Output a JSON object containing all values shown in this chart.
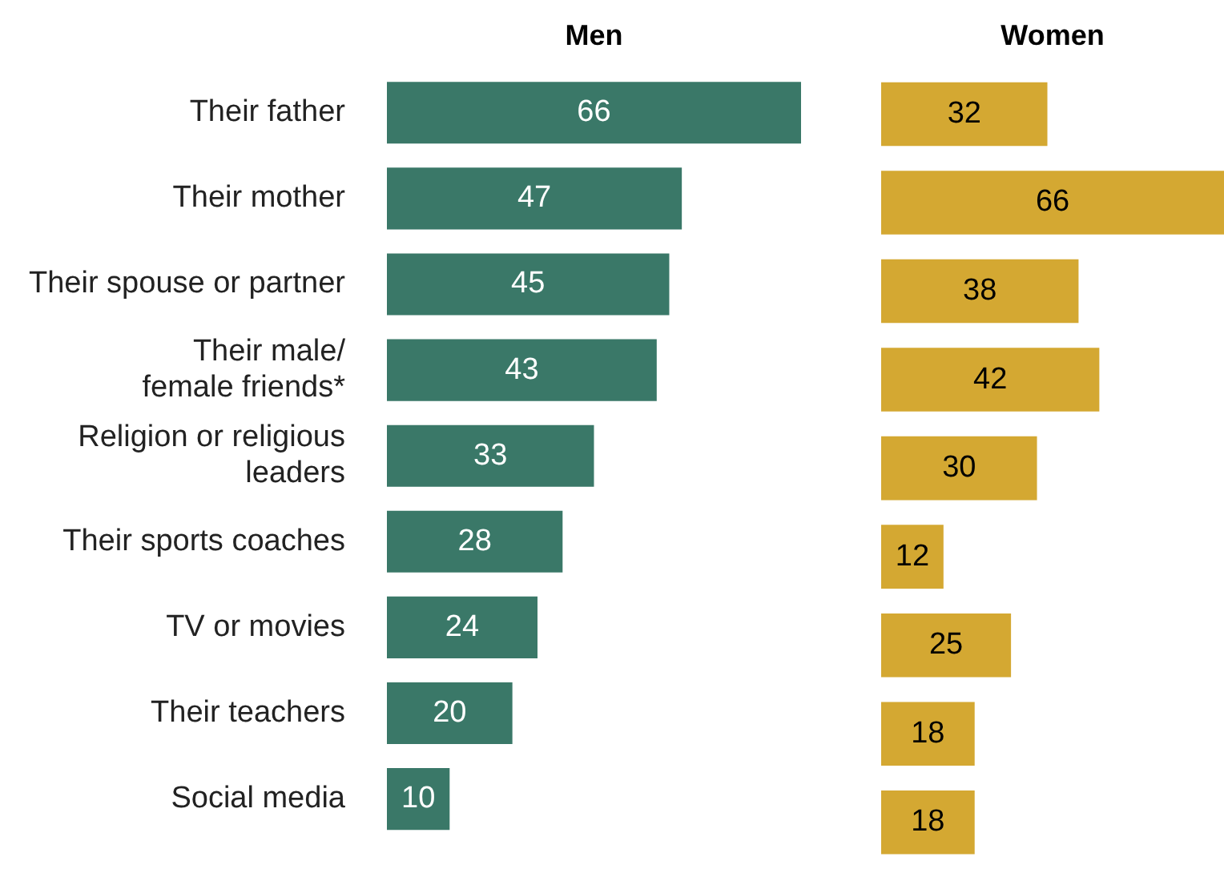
{
  "chart_data": [
    {
      "type": "bar",
      "orientation": "horizontal",
      "title": "Men",
      "categories": [
        "Their father",
        "Their mother",
        "Their spouse or partner",
        "Their male/\nfemale friends*",
        "Religion or religious\nleaders",
        "Their sports coaches",
        "TV or movies",
        "Their teachers",
        "Social media"
      ],
      "values": [
        66,
        47,
        45,
        43,
        33,
        28,
        24,
        20,
        10
      ],
      "color": "#3a7868",
      "xlim": [
        0,
        66
      ],
      "data_labels": true,
      "tick_labels": "y"
    },
    {
      "type": "bar",
      "orientation": "horizontal",
      "title": "Women",
      "categories": [
        null,
        null,
        null,
        null,
        null,
        null,
        null,
        null,
        null
      ],
      "values": [
        32,
        66,
        38,
        42,
        30,
        12,
        25,
        18,
        18
      ],
      "color": "#d4a832",
      "xlim": [
        0,
        66
      ],
      "data_labels": true,
      "tick_labels": false
    }
  ]
}
